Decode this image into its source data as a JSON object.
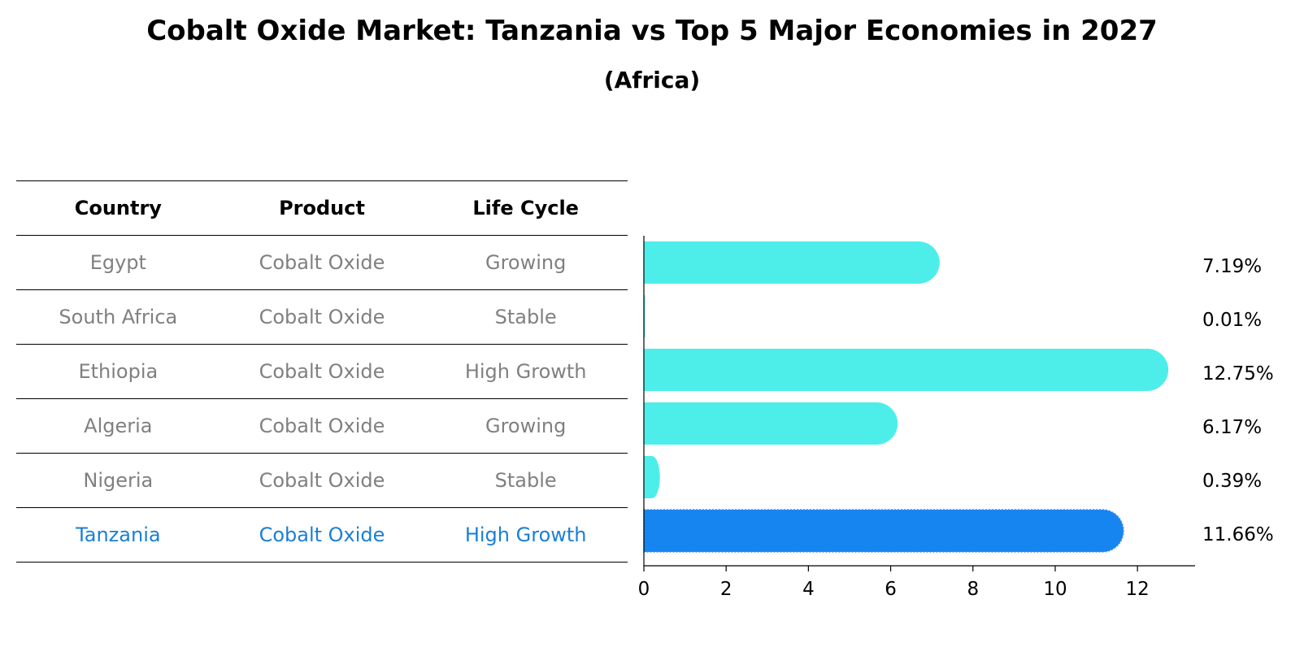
{
  "title": "Cobalt Oxide Market: Tanzania vs Top 5 Major Economies in 2027",
  "subtitle": "(Africa)",
  "table": {
    "headers": [
      "Country",
      "Product",
      "Life Cycle"
    ],
    "rows": [
      {
        "country": "Egypt",
        "product": "Cobalt Oxide",
        "life_cycle": "Growing"
      },
      {
        "country": "South Africa",
        "product": "Cobalt Oxide",
        "life_cycle": "Stable"
      },
      {
        "country": "Ethiopia",
        "product": "Cobalt Oxide",
        "life_cycle": "High Growth"
      },
      {
        "country": "Algeria",
        "product": "Cobalt Oxide",
        "life_cycle": "Growing"
      },
      {
        "country": "Nigeria",
        "product": "Cobalt Oxide",
        "life_cycle": "Stable"
      },
      {
        "country": "Tanzania",
        "product": "Cobalt Oxide",
        "life_cycle": "High Growth"
      }
    ],
    "highlight_country": "Tanzania"
  },
  "colors": {
    "bar": "#4deeea",
    "highlight_bar": "#1685f0",
    "highlight_text": "#1a7fd6",
    "muted_text": "#808080"
  },
  "chart_data": {
    "type": "bar",
    "orientation": "horizontal",
    "categories": [
      "Egypt",
      "South Africa",
      "Ethiopia",
      "Algeria",
      "Nigeria",
      "Tanzania"
    ],
    "values": [
      7.19,
      0.01,
      12.75,
      6.17,
      0.39,
      11.66
    ],
    "value_labels": [
      "7.19%",
      "0.01%",
      "12.75%",
      "6.17%",
      "0.39%",
      "11.66%"
    ],
    "highlight": "Tanzania",
    "xlim": [
      0,
      13.4
    ],
    "xticks": [
      0,
      2,
      4,
      6,
      8,
      10,
      12
    ],
    "xlabel": "",
    "ylabel": ""
  }
}
